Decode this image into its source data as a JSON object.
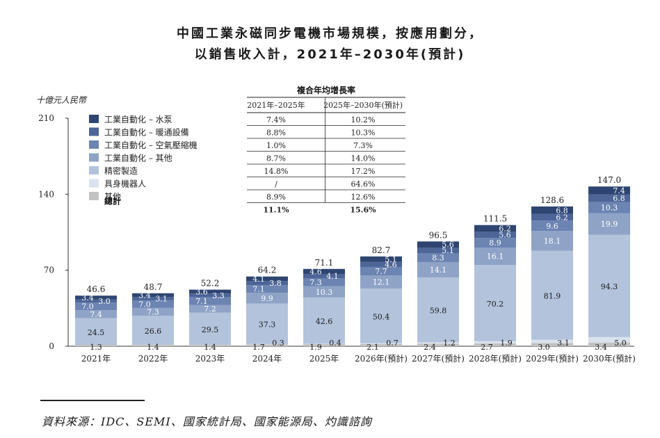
{
  "title_line1": "中國工業永磁同步電機市場規模，按應用劃分，",
  "title_line2": "以銷售收入計，2021年–2030年(預計)",
  "source": "資料來源：IDC、SEMI、國家統計局、國家能源局、灼識諮詢",
  "chart_data": {
    "type": "bar",
    "stacked": true,
    "ylabel": "十億元人民幣",
    "ylim": [
      0,
      210
    ],
    "yticks": [
      0,
      70,
      140,
      210
    ],
    "categories": [
      "2021年",
      "2022年",
      "2023年",
      "2024年",
      "2025年",
      "2026年(預計)",
      "2027年(預計)",
      "2028年(預計)",
      "2029年(預計)",
      "2030年(預計)"
    ],
    "series": [
      {
        "name": "其他",
        "color": "#c2c2c2",
        "values": [
          1.3,
          1.4,
          1.4,
          1.7,
          1.9,
          2.1,
          2.4,
          2.7,
          3.0,
          3.4
        ]
      },
      {
        "name": "具身機器人",
        "color": "#d9e2ee",
        "values": [
          null,
          null,
          null,
          0.3,
          0.4,
          0.7,
          1.2,
          1.9,
          3.1,
          5.0
        ]
      },
      {
        "name": "精密製造",
        "color": "#b3c3dc",
        "values": [
          24.5,
          26.6,
          29.5,
          37.3,
          42.6,
          50.4,
          59.8,
          70.2,
          81.9,
          94.3
        ]
      },
      {
        "name": "工業自動化 – 其他",
        "color": "#8ea3c6",
        "values": [
          7.4,
          7.3,
          7.2,
          9.9,
          10.3,
          12.1,
          14.1,
          16.1,
          18.1,
          19.9
        ]
      },
      {
        "name": "工業自動化 – 空氣壓縮機",
        "color": "#6c84b2",
        "values": [
          7.0,
          7.0,
          7.1,
          7.1,
          7.3,
          7.7,
          8.3,
          8.9,
          9.6,
          10.3
        ]
      },
      {
        "name": "工業自動化 – 暖通設備",
        "color": "#4d6597",
        "values": [
          3.0,
          3.1,
          3.3,
          3.8,
          4.1,
          4.6,
          5.1,
          5.6,
          6.2,
          6.8
        ]
      },
      {
        "name": "工業自動化 – 水泵",
        "color": "#2f4571",
        "values": [
          3.4,
          3.4,
          3.6,
          4.1,
          4.6,
          5.1,
          5.6,
          6.2,
          6.8,
          7.4
        ]
      }
    ],
    "totals": [
      46.6,
      48.7,
      52.2,
      64.2,
      71.1,
      82.7,
      96.5,
      111.5,
      128.6,
      147.0
    ],
    "total_label": "總計",
    "legend_order": [
      "工業自動化 – 水泵",
      "工業自動化 – 暖通設備",
      "工業自動化 – 空氣壓縮機",
      "工業自動化 – 其他",
      "精密製造",
      "具身機器人",
      "其他"
    ],
    "cagr_table": {
      "title": "複合年均增長率",
      "headers": [
        "2021年–2025年",
        "2025年–2030年(預計)"
      ],
      "rows": [
        [
          "7.4%",
          "10.2%"
        ],
        [
          "8.8%",
          "10.3%"
        ],
        [
          "1.0%",
          "7.3%"
        ],
        [
          "8.7%",
          "14.0%"
        ],
        [
          "14.8%",
          "17.2%"
        ],
        [
          "/",
          "64.6%"
        ],
        [
          "8.9%",
          "12.6%"
        ],
        [
          "11.1%",
          "15.6%"
        ]
      ]
    }
  }
}
